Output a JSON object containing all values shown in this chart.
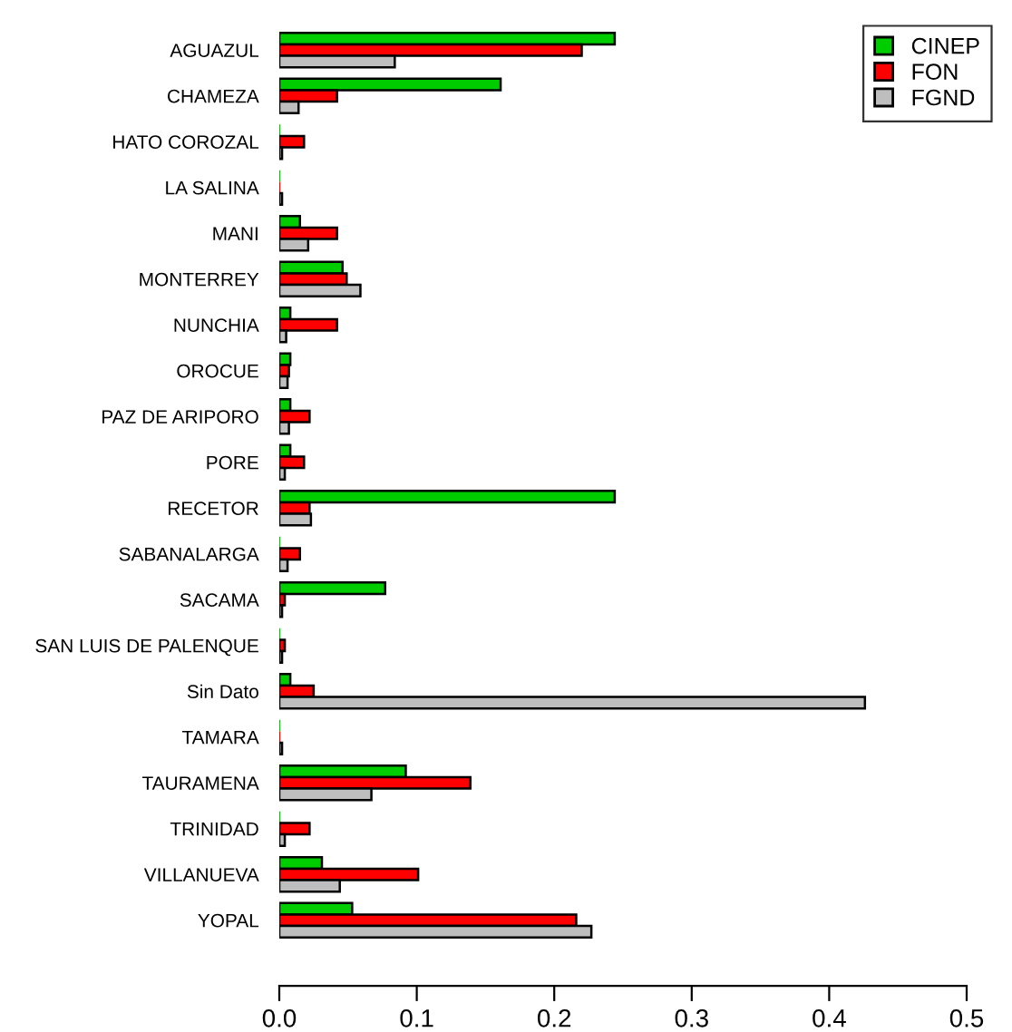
{
  "chart_data": {
    "type": "bar",
    "orientation": "horizontal",
    "categories": [
      "AGUAZUL",
      "CHAMEZA",
      "HATO COROZAL",
      "LA SALINA",
      "MANI",
      "MONTERREY",
      "NUNCHIA",
      "OROCUE",
      "PAZ DE ARIPORO",
      "PORE",
      "RECETOR",
      "SABANALARGA",
      "SACAMA",
      "SAN LUIS DE PALENQUE",
      "Sin Dato",
      "TAMARA",
      "TAURAMENA",
      "TRINIDAD",
      "VILLANUEVA",
      "YOPAL"
    ],
    "series": [
      {
        "name": "CINEP",
        "color": "#00cd00",
        "values": [
          0.244,
          0.161,
          0,
          0,
          0.015,
          0.046,
          0.008,
          0.008,
          0.008,
          0.008,
          0.244,
          0,
          0.077,
          0,
          0.008,
          0,
          0.092,
          0,
          0.031,
          0.053
        ]
      },
      {
        "name": "FON",
        "color": "#ff0000",
        "values": [
          0.22,
          0.042,
          0.018,
          0,
          0.042,
          0.049,
          0.042,
          0.007,
          0.022,
          0.018,
          0.022,
          0.015,
          0.004,
          0.004,
          0.025,
          0,
          0.139,
          0.022,
          0.101,
          0.216
        ]
      },
      {
        "name": "FGND",
        "color": "#bebebe",
        "values": [
          0.084,
          0.014,
          0.002,
          0.002,
          0.021,
          0.059,
          0.005,
          0.006,
          0.007,
          0.004,
          0.023,
          0.006,
          0.002,
          0.002,
          0.426,
          0.002,
          0.067,
          0.004,
          0.044,
          0.227
        ]
      }
    ],
    "xlim": [
      0,
      0.5
    ],
    "xticks": [
      {
        "value": 0,
        "label": "0.0"
      },
      0.1,
      0.2,
      0.3,
      0.4,
      0.5
    ],
    "legend": "top right",
    "grid": false
  }
}
